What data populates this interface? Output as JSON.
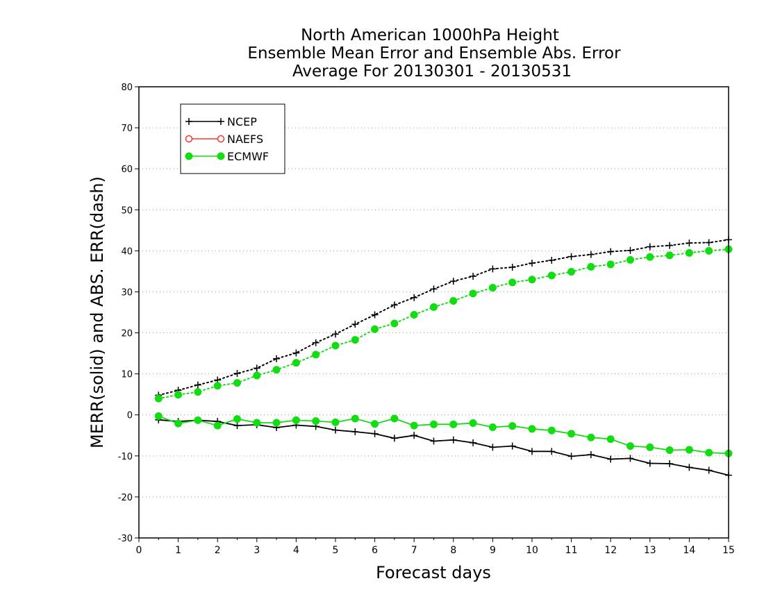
{
  "chart_data": {
    "type": "line",
    "title": [
      "North American 1000hPa Height",
      "Ensemble Mean Error and Ensemble Abs. Error",
      "Average For 20130301 - 20130531"
    ],
    "xlabel": "Forecast days",
    "ylabel": "MERR(solid) and ABS. ERR(dash)",
    "xlim": [
      0,
      15
    ],
    "ylim": [
      -30,
      80
    ],
    "xticks": [
      0,
      1,
      2,
      3,
      4,
      5,
      6,
      7,
      8,
      9,
      10,
      11,
      12,
      13,
      14,
      15
    ],
    "yticks": [
      -30,
      -20,
      -10,
      0,
      10,
      20,
      30,
      40,
      50,
      60,
      70,
      80
    ],
    "grid": "dotted horizontal",
    "legend_position": "top-left",
    "legend": [
      {
        "name": "NCEP",
        "color": "#000000",
        "marker": "plus"
      },
      {
        "name": "NAEFS",
        "color": "#ff3333",
        "marker": "open-circle"
      },
      {
        "name": "ECMWF",
        "color": "#11dd11",
        "marker": "filled-circle"
      }
    ],
    "x": [
      0.5,
      1,
      1.5,
      2,
      2.5,
      3,
      3.5,
      4,
      4.5,
      5,
      5.5,
      6,
      6.5,
      7,
      7.5,
      8,
      8.5,
      9,
      9.5,
      10,
      10.5,
      11,
      11.5,
      12,
      12.5,
      13,
      13.5,
      14,
      14.5,
      15
    ],
    "series": [
      {
        "name": "NCEP",
        "kind": "MERR",
        "style": "solid",
        "color": "#000000",
        "marker": "plus",
        "values": [
          -1.2,
          -1.6,
          -1.3,
          -1.6,
          -2.6,
          -2.4,
          -3.1,
          -2.5,
          -2.8,
          -3.7,
          -4.1,
          -4.6,
          -5.7,
          -5.0,
          -6.4,
          -6.1,
          -6.8,
          -7.9,
          -7.6,
          -8.9,
          -8.9,
          -10.1,
          -9.7,
          -10.8,
          -10.6,
          -11.8,
          -11.9,
          -12.8,
          -13.5,
          -14.7
        ]
      },
      {
        "name": "NCEP",
        "kind": "ABS. ERR",
        "style": "dotted",
        "color": "#000000",
        "marker": "plus",
        "values": [
          4.8,
          6.0,
          7.3,
          8.5,
          10.1,
          11.4,
          13.7,
          15.1,
          17.6,
          19.7,
          22.1,
          24.4,
          26.8,
          28.6,
          30.7,
          32.6,
          33.8,
          35.6,
          36.0,
          37.0,
          37.7,
          38.6,
          39.1,
          39.8,
          40.1,
          41.0,
          41.3,
          41.9,
          42.0,
          42.7
        ]
      },
      {
        "name": "ECMWF",
        "kind": "MERR",
        "style": "solid",
        "color": "#11dd11",
        "marker": "filled-circle",
        "values": [
          -0.3,
          -2.1,
          -1.3,
          -2.6,
          -1.0,
          -1.9,
          -1.9,
          -1.3,
          -1.5,
          -1.8,
          -0.9,
          -2.2,
          -0.9,
          -2.6,
          -2.3,
          -2.3,
          -2.0,
          -3.0,
          -2.7,
          -3.4,
          -3.8,
          -4.6,
          -5.5,
          -5.9,
          -7.6,
          -7.9,
          -8.6,
          -8.5,
          -9.2,
          -9.4
        ]
      },
      {
        "name": "ECMWF",
        "kind": "ABS. ERR",
        "style": "dotted",
        "color": "#11dd11",
        "marker": "filled-circle",
        "values": [
          4.0,
          4.9,
          5.6,
          7.1,
          7.8,
          9.6,
          11.0,
          12.7,
          14.7,
          16.9,
          18.3,
          20.9,
          22.3,
          24.4,
          26.3,
          27.8,
          29.6,
          31.0,
          32.3,
          33.0,
          34.0,
          34.9,
          36.1,
          36.7,
          37.8,
          38.5,
          38.9,
          39.5,
          40.0,
          40.4
        ]
      }
    ]
  }
}
